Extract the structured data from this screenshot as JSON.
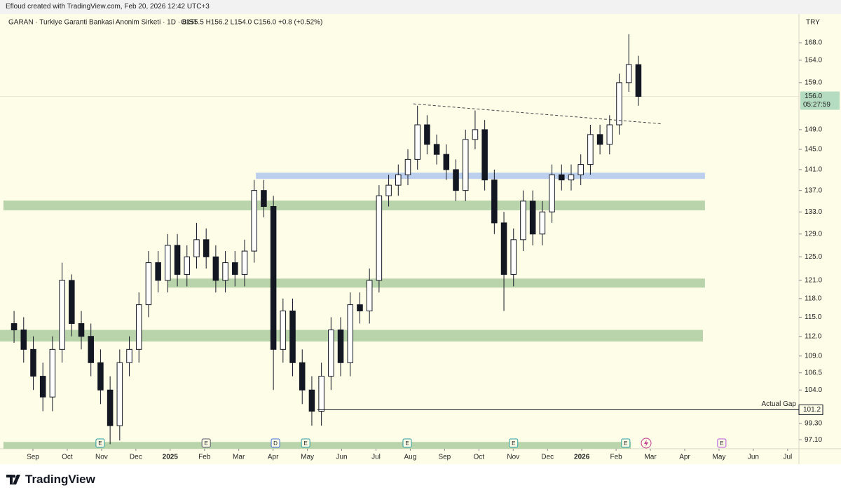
{
  "header": {
    "credit": "Efloud created with TradingView.com, Feb 20, 2026 12:42 UTC+3",
    "symbol": "GARAN · Turkiye Garanti Bankasi Anonim Sirketi · 1D · BIST",
    "ohlc": "O155.5  H156.2  L154.0  C156.0  +0.8 (+0.52%)",
    "currency": "TRY"
  },
  "footer": {
    "brand": "TradingView"
  },
  "chart_data": {
    "type": "candlestick",
    "log_scale": true,
    "xlim": [
      -0.96,
      22.33
    ],
    "ylim": [
      95.9,
      174.8
    ],
    "xticks": [
      {
        "value": 0,
        "label": "Sep"
      },
      {
        "value": 1,
        "label": "Oct"
      },
      {
        "value": 2,
        "label": "Nov"
      },
      {
        "value": 3,
        "label": "Dec"
      },
      {
        "value": 4,
        "label": "2025"
      },
      {
        "value": 5,
        "label": "Feb"
      },
      {
        "value": 6,
        "label": "Mar"
      },
      {
        "value": 7,
        "label": "Apr"
      },
      {
        "value": 8,
        "label": "May"
      },
      {
        "value": 9,
        "label": "Jun"
      },
      {
        "value": 10,
        "label": "Jul"
      },
      {
        "value": 11,
        "label": "Aug"
      },
      {
        "value": 12,
        "label": "Sep"
      },
      {
        "value": 13,
        "label": "Oct"
      },
      {
        "value": 14,
        "label": "Nov"
      },
      {
        "value": 15,
        "label": "Dec"
      },
      {
        "value": 16,
        "label": "2026"
      },
      {
        "value": 17,
        "label": "Feb"
      },
      {
        "value": 18,
        "label": "Mar"
      },
      {
        "value": 19,
        "label": "Apr"
      },
      {
        "value": 20,
        "label": "May"
      },
      {
        "value": 21,
        "label": "Jun"
      },
      {
        "value": 22,
        "label": "Jul"
      }
    ],
    "yticks": [
      {
        "value": 168,
        "label": "168.0"
      },
      {
        "value": 164,
        "label": "164.0"
      },
      {
        "value": 159,
        "label": "159.0"
      },
      {
        "value": 149,
        "label": "149.0"
      },
      {
        "value": 145,
        "label": "145.0"
      },
      {
        "value": 141,
        "label": "141.0"
      },
      {
        "value": 137,
        "label": "137.0"
      },
      {
        "value": 133,
        "label": "133.0"
      },
      {
        "value": 129,
        "label": "129.0"
      },
      {
        "value": 125,
        "label": "125.0"
      },
      {
        "value": 121,
        "label": "121.0"
      },
      {
        "value": 118,
        "label": "118.0"
      },
      {
        "value": 115,
        "label": "115.0"
      },
      {
        "value": 112,
        "label": "112.0"
      },
      {
        "value": 109,
        "label": "109.0"
      },
      106.5,
      {
        "value": 104,
        "label": "104.0"
      },
      {
        "value": 99.3,
        "label": "99.30"
      },
      {
        "value": 97.1,
        "label": "97.10"
      }
    ],
    "up_color": "#ffffff",
    "down_color": "#131722",
    "x": [
      -0.55,
      -0.27,
      0.01,
      0.29,
      0.57,
      0.85,
      1.13,
      1.41,
      1.69,
      1.97,
      2.25,
      2.53,
      2.81,
      3.09,
      3.37,
      3.65,
      3.93,
      4.21,
      4.49,
      4.77,
      5.05,
      5.33,
      5.61,
      5.89,
      6.17,
      6.45,
      6.73,
      7.01,
      7.29,
      7.57,
      7.85,
      8.13,
      8.41,
      8.69,
      8.97,
      9.25,
      9.53,
      9.81,
      10.09,
      10.37,
      10.65,
      10.93,
      11.21,
      11.49,
      11.77,
      12.05,
      12.33,
      12.61,
      12.89,
      13.17,
      13.45,
      13.73,
      14.01,
      14.29,
      14.57,
      14.85,
      15.13,
      15.41,
      15.69,
      15.97,
      16.25,
      16.53,
      16.81,
      17.09,
      17.37,
      17.65
    ],
    "open": [
      114,
      113,
      110,
      106,
      103,
      110,
      121,
      114,
      112,
      108,
      104,
      99,
      108,
      110,
      117,
      124,
      121,
      127,
      122,
      125,
      128,
      125,
      121,
      124,
      122,
      126,
      137,
      134,
      110,
      116,
      108,
      104,
      101,
      106,
      113,
      108,
      117,
      116,
      121,
      136,
      138,
      140,
      143,
      150,
      146,
      144,
      141,
      137,
      147,
      149,
      139,
      131,
      122,
      128,
      135,
      129,
      133,
      140,
      139,
      140,
      142,
      148,
      146,
      150,
      159,
      163
    ],
    "high": [
      116,
      115,
      112,
      108,
      112,
      124,
      122,
      116,
      114,
      110,
      106,
      110,
      112,
      119,
      126,
      126,
      129,
      129,
      127,
      131,
      130,
      127,
      126,
      126,
      128,
      139,
      139,
      136,
      118,
      118,
      110,
      106,
      108,
      115,
      115,
      119,
      119,
      123,
      138,
      140,
      142,
      145,
      154,
      152,
      148,
      146,
      143,
      149,
      153,
      151,
      141,
      133,
      130,
      137,
      137,
      135,
      142,
      142,
      142,
      144,
      150,
      150,
      152,
      161,
      170,
      165
    ],
    "low": [
      111,
      108,
      104,
      101,
      101,
      108,
      112,
      110,
      106,
      102,
      96.5,
      97,
      106,
      108,
      115,
      119,
      119,
      120,
      120,
      123,
      123,
      119,
      119,
      120,
      120,
      124,
      132,
      104,
      108,
      106,
      102,
      99,
      99,
      104,
      106,
      106,
      114,
      114,
      119,
      134,
      136,
      138,
      141,
      144,
      142,
      139,
      135,
      135,
      145,
      137,
      129,
      116,
      120,
      126,
      127,
      127,
      131,
      137,
      137,
      138,
      140,
      144,
      144,
      148,
      157,
      154
    ],
    "close": [
      113,
      110,
      106,
      103,
      110,
      121,
      114,
      112,
      108,
      104,
      99,
      108,
      110,
      117,
      124,
      121,
      127,
      122,
      125,
      128,
      125,
      121,
      124,
      122,
      126,
      137,
      134,
      110,
      116,
      108,
      104,
      101,
      106,
      113,
      108,
      117,
      116,
      121,
      136,
      138,
      140,
      143,
      150,
      146,
      144,
      141,
      137,
      147,
      149,
      139,
      131,
      122,
      128,
      135,
      129,
      133,
      140,
      139,
      140,
      142,
      148,
      146,
      150,
      159,
      163,
      156
    ],
    "zones": [
      {
        "x0": -0.96,
        "x1": 19.53,
        "ymin": 111.2,
        "ymax": 113.0,
        "color": "#b9d3ab"
      },
      {
        "x0": 3.94,
        "x1": 19.59,
        "ymin": 119.8,
        "ymax": 121.3,
        "color": "#b9d3ab"
      },
      {
        "x0": -0.86,
        "x1": 19.59,
        "ymin": 133.3,
        "ymax": 135.1,
        "color": "#b9d3ab"
      },
      {
        "x0": 6.5,
        "x1": 19.59,
        "ymin": 139.2,
        "ymax": 140.4,
        "color": "#bcd0ee"
      },
      {
        "x0": -0.86,
        "x1": 17.43,
        "ymin": 95.9,
        "ymax": 96.8,
        "color": "#b9d3ab"
      }
    ],
    "trendline": {
      "x0": 11.09,
      "x1": 18.35,
      "y0": 154.4,
      "y1": 150.2,
      "color": "#444444"
    },
    "gap": {
      "value": 101.2,
      "label": "101.2",
      "text": "Actual Gap",
      "x0": 8.29
    },
    "current_price": {
      "value": 156,
      "label": "156.0",
      "countdown": "05:27:59",
      "color": "#b5dcc0"
    },
    "events": [
      {
        "x": 1.96,
        "label": "E",
        "color": "#2a9d9f"
      },
      {
        "x": 5.05,
        "label": "E",
        "color": "#555566"
      },
      {
        "x": 7.07,
        "label": "D",
        "color": "#3f6fd8"
      },
      {
        "x": 7.95,
        "label": "E",
        "color": "#2a9d9f"
      },
      {
        "x": 10.91,
        "label": "E",
        "color": "#2a9d9f"
      },
      {
        "x": 14.01,
        "label": "E",
        "color": "#2a9d9f"
      },
      {
        "x": 17.28,
        "label": "E",
        "color": "#2a9d9f"
      },
      {
        "x": 20.08,
        "label": "E",
        "color": "#b455d6"
      }
    ]
  }
}
